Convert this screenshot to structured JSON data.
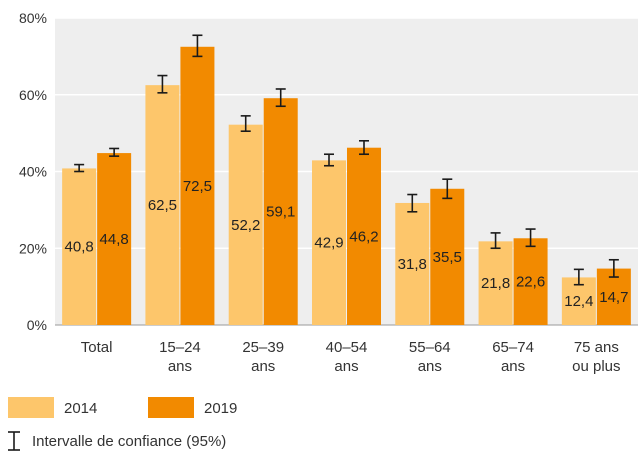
{
  "chart_data": {
    "type": "bar",
    "categories": [
      [
        "Total"
      ],
      [
        "15–24",
        "ans"
      ],
      [
        "25–39",
        "ans"
      ],
      [
        "40–54",
        "ans"
      ],
      [
        "55–64",
        "ans"
      ],
      [
        "65–74",
        "ans"
      ],
      [
        "75 ans",
        "ou plus"
      ]
    ],
    "series": [
      {
        "name": "2014",
        "color": "#FDC66B",
        "values": [
          40.8,
          62.5,
          52.2,
          42.9,
          31.8,
          21.8,
          12.4
        ],
        "labels": [
          "40,8",
          "62,5",
          "52,2",
          "42,9",
          "31,8",
          "21,8",
          "12,4"
        ],
        "ci_low": [
          40.0,
          60.5,
          50.5,
          41.5,
          29.5,
          20.0,
          10.5
        ],
        "ci_high": [
          41.8,
          65.0,
          54.5,
          44.5,
          34.0,
          24.0,
          14.5
        ]
      },
      {
        "name": "2019",
        "color": "#F28A00",
        "values": [
          44.8,
          72.5,
          59.1,
          46.2,
          35.5,
          22.6,
          14.7
        ],
        "labels": [
          "44,8",
          "72,5",
          "59,1",
          "46,2",
          "35,5",
          "22,6",
          "14,7"
        ],
        "ci_low": [
          44.0,
          70.0,
          57.0,
          44.5,
          33.0,
          20.5,
          12.5
        ],
        "ci_high": [
          46.0,
          75.5,
          61.5,
          48.0,
          38.0,
          25.0,
          17.0
        ]
      }
    ],
    "ylim": [
      0,
      80
    ],
    "yticks": [
      0,
      20,
      40,
      60,
      80
    ],
    "ytick_labels": [
      "0%",
      "20%",
      "40%",
      "60%",
      "80%"
    ],
    "grid": true,
    "plot_background": "#EEEEEE",
    "gridline_color": "#FFFFFF",
    "legend_position": "bottom",
    "errorbar_legend_label": "Intervalle de confiance (95%)",
    "errorbar_icon": "error-bar-icon"
  }
}
